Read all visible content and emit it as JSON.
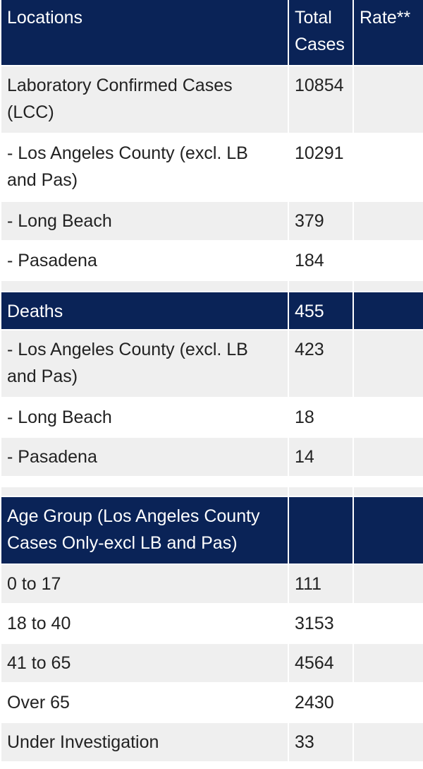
{
  "table": {
    "headers": {
      "location": "Locations",
      "total_cases": "Total Cases",
      "rate": "Rate**"
    },
    "confirmed": {
      "label": "Laboratory Confirmed Cases (LCC)",
      "total": "10854",
      "rate": ""
    },
    "cases_rows": [
      {
        "label": "- Los Angeles County (excl. LB and Pas)",
        "total": "10291",
        "rate": ""
      },
      {
        "label": "- Long Beach",
        "total": "379",
        "rate": ""
      },
      {
        "label": "- Pasadena",
        "total": "184",
        "rate": ""
      }
    ],
    "deaths": {
      "label": "Deaths",
      "total": "455",
      "rate": ""
    },
    "deaths_rows": [
      {
        "label": "- Los Angeles County (excl. LB and Pas)",
        "total": "423",
        "rate": ""
      },
      {
        "label": "- Long Beach",
        "total": "18",
        "rate": ""
      },
      {
        "label": "- Pasadena",
        "total": "14",
        "rate": ""
      }
    ],
    "age_group": {
      "label": "Age Group (Los Angeles County Cases Only-excl LB and Pas)",
      "total": "",
      "rate": ""
    },
    "age_rows": [
      {
        "label": "0 to 17",
        "total": "111",
        "rate": ""
      },
      {
        "label": "18 to 40",
        "total": "3153",
        "rate": ""
      },
      {
        "label": "41 to 65",
        "total": "4564",
        "rate": ""
      },
      {
        "label": "Over 65",
        "total": "2430",
        "rate": ""
      },
      {
        "label": "Under Investigation",
        "total": "33",
        "rate": ""
      }
    ]
  },
  "colors": {
    "header_bg": "#0a2357",
    "header_text": "#ffffff",
    "row_grey": "#efefef",
    "row_white": "#ffffff"
  }
}
